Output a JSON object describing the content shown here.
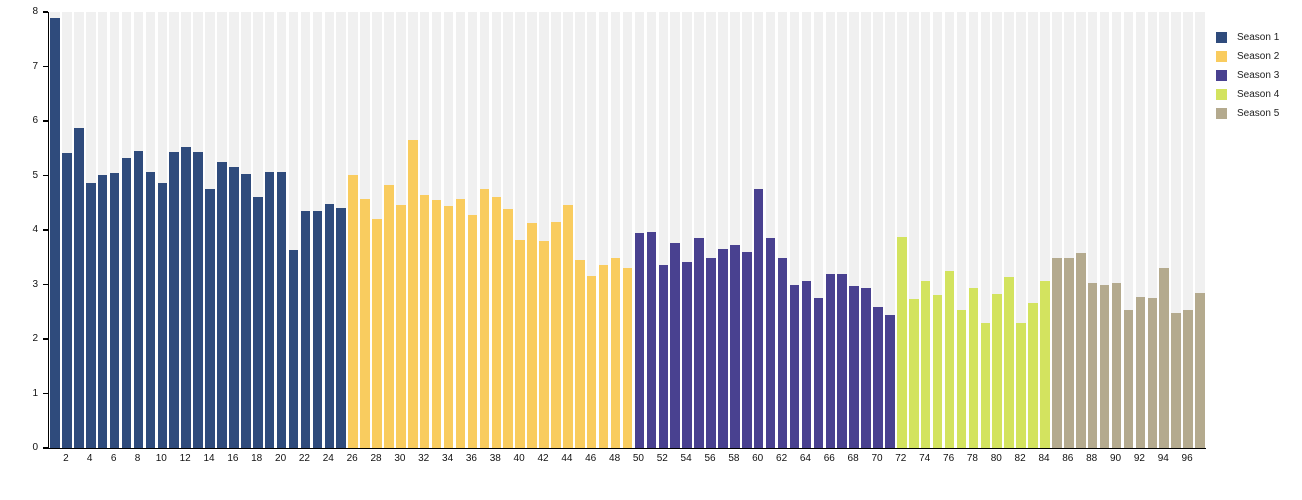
{
  "colors": {
    "background": "#ffffff",
    "stripe": "#f0f0f0",
    "axis": "#000000",
    "season1": "#2f4b7c",
    "season2": "#f9cc5f",
    "season3": "#494190",
    "season4": "#d3e35f",
    "season5": "#b4aa8e"
  },
  "legend": {
    "position": "top-right",
    "items": [
      {
        "label": "Season 1",
        "color": "#2f4b7c"
      },
      {
        "label": "Season 2",
        "color": "#f9cc5f"
      },
      {
        "label": "Season 3",
        "color": "#494190"
      },
      {
        "label": "Season 4",
        "color": "#d3e35f"
      },
      {
        "label": "Season 5",
        "color": "#b4aa8e"
      }
    ]
  },
  "chart_data": {
    "type": "bar",
    "title": "",
    "xlabel": "",
    "ylabel": "",
    "ylim": [
      0,
      8
    ],
    "yticks": [
      0,
      1,
      2,
      3,
      4,
      5,
      6,
      7,
      8
    ],
    "xticks": [
      2,
      4,
      6,
      8,
      10,
      12,
      14,
      16,
      18,
      20,
      22,
      24,
      26,
      28,
      30,
      32,
      34,
      36,
      38,
      40,
      42,
      44,
      46,
      48,
      50,
      52,
      54,
      56,
      58,
      60,
      62,
      64,
      66,
      68,
      70,
      72,
      74,
      76,
      78,
      80,
      82,
      84,
      86,
      88,
      90,
      92,
      94,
      96
    ],
    "grid": "striped-background",
    "legend_position": "top-right",
    "x_is_episode_number": true,
    "series": [
      {
        "name": "Season 1",
        "color": "#2f4b7c",
        "episodes_range": [
          1,
          25
        ],
        "values": [
          7.89,
          5.41,
          5.87,
          4.87,
          5.01,
          5.05,
          5.33,
          5.45,
          5.07,
          4.86,
          5.43,
          5.53,
          5.43,
          4.75,
          5.24,
          5.15,
          5.03,
          4.6,
          5.06,
          5.06,
          3.64,
          4.35,
          4.35,
          4.47,
          4.41
        ]
      },
      {
        "name": "Season 2",
        "color": "#f9cc5f",
        "episodes_range": [
          26,
          49
        ],
        "values": [
          5.01,
          4.56,
          4.21,
          4.83,
          4.46,
          5.66,
          4.64,
          4.55,
          4.44,
          4.56,
          4.28,
          4.75,
          4.6,
          4.38,
          3.82,
          4.13,
          3.79,
          4.14,
          4.46,
          3.45,
          3.16,
          3.36,
          3.49,
          3.3
        ]
      },
      {
        "name": "Season 3",
        "color": "#494190",
        "episodes_range": [
          50,
          71
        ],
        "values": [
          3.94,
          3.97,
          3.36,
          3.77,
          3.42,
          3.85,
          3.48,
          3.65,
          3.72,
          3.6,
          4.75,
          3.86,
          3.49,
          2.99,
          3.07,
          2.75,
          3.2,
          3.2,
          2.97,
          2.94,
          2.59,
          2.44
        ]
      },
      {
        "name": "Season 4",
        "color": "#d3e35f",
        "episodes_range": [
          72,
          84
        ],
        "values": [
          3.88,
          2.73,
          3.06,
          2.81,
          3.25,
          2.54,
          2.94,
          2.3,
          2.82,
          3.13,
          2.3,
          2.67,
          3.06
        ]
      },
      {
        "name": "Season 5",
        "color": "#b4aa8e",
        "episodes_range": [
          85,
          97
        ],
        "values": [
          3.49,
          3.49,
          3.57,
          3.03,
          3.0,
          3.02,
          2.53,
          2.78,
          2.75,
          3.3,
          2.47,
          2.53,
          2.85
        ]
      }
    ]
  }
}
